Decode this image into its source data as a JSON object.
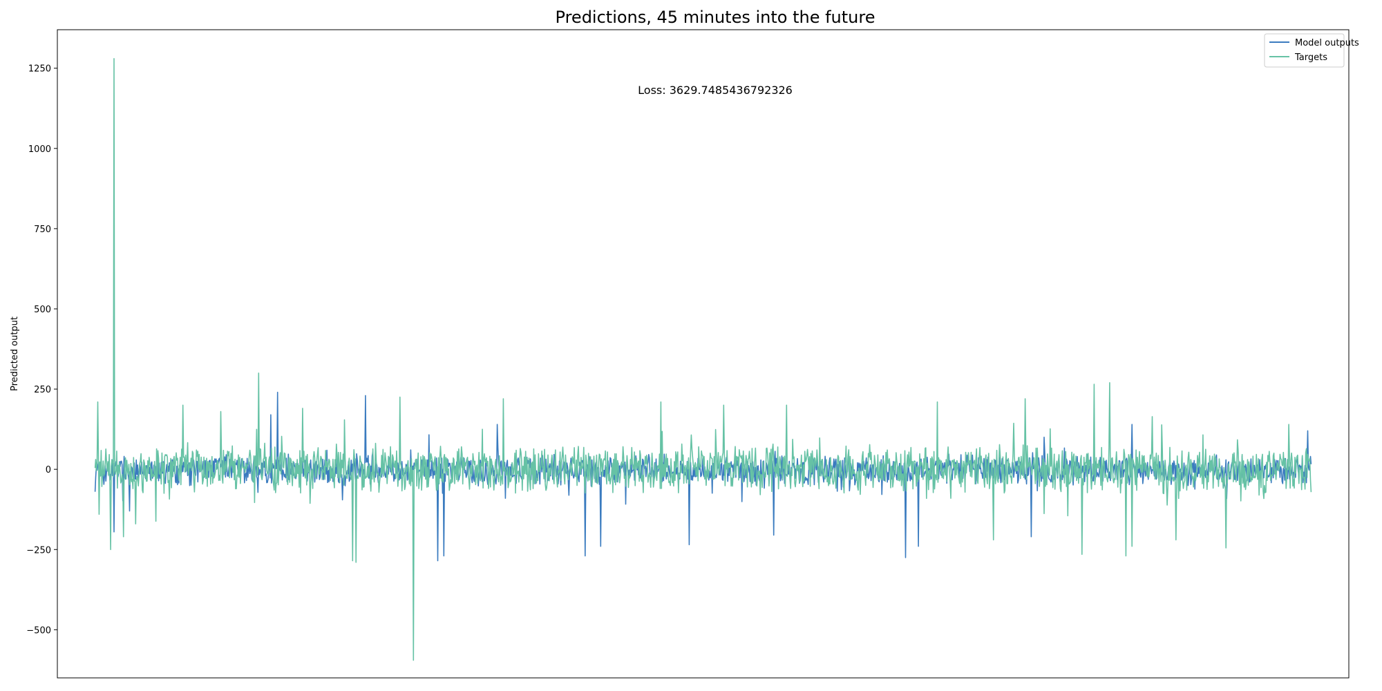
{
  "chart_data": {
    "type": "line",
    "title": "Predictions, 45 minutes into the future",
    "xlabel": "",
    "ylabel": "Predicted output",
    "ylim": [
      -650,
      1370
    ],
    "yticks": [
      -500,
      -250,
      0,
      250,
      500,
      750,
      1000,
      1250
    ],
    "ytick_labels": [
      "−500",
      "−250",
      "0",
      "250",
      "500",
      "750",
      "1000",
      "1250"
    ],
    "x_ticks_shown": false,
    "grid": false,
    "legend_position": "top-right",
    "annotation": "Loss: 3629.7485436792326",
    "x_range": [
      -60,
      1995
    ],
    "series": [
      {
        "name": "Model outputs",
        "color": "#3a7bbf",
        "band_low": -40,
        "band_high": 35,
        "spikes": [
          {
            "x": 0,
            "y": -70
          },
          {
            "x": 30,
            "y": -195
          },
          {
            "x": 55,
            "y": -130
          },
          {
            "x": 290,
            "y": 240
          },
          {
            "x": 280,
            "y": 170
          },
          {
            "x": 430,
            "y": 230
          },
          {
            "x": 545,
            "y": -285
          },
          {
            "x": 555,
            "y": -270
          },
          {
            "x": 640,
            "y": 140
          },
          {
            "x": 780,
            "y": -270
          },
          {
            "x": 805,
            "y": -240
          },
          {
            "x": 945,
            "y": -235
          },
          {
            "x": 1080,
            "y": -205
          },
          {
            "x": 1290,
            "y": -275
          },
          {
            "x": 1310,
            "y": -240
          },
          {
            "x": 1490,
            "y": -210
          },
          {
            "x": 1510,
            "y": 100
          },
          {
            "x": 1650,
            "y": 140
          },
          {
            "x": 1930,
            "y": 120
          },
          {
            "x": 1960,
            "y": -155
          }
        ]
      },
      {
        "name": "Targets",
        "color": "#66c2a5",
        "band_low": -60,
        "band_high": 60,
        "spikes": [
          {
            "x": 4,
            "y": 210
          },
          {
            "x": 6,
            "y": -140
          },
          {
            "x": 25,
            "y": -250
          },
          {
            "x": 30,
            "y": 1280
          },
          {
            "x": 45,
            "y": -210
          },
          {
            "x": 140,
            "y": 200
          },
          {
            "x": 200,
            "y": 180
          },
          {
            "x": 260,
            "y": 300
          },
          {
            "x": 330,
            "y": 190
          },
          {
            "x": 410,
            "y": -285
          },
          {
            "x": 415,
            "y": -290
          },
          {
            "x": 485,
            "y": 225
          },
          {
            "x": 507,
            "y": -595
          },
          {
            "x": 650,
            "y": 220
          },
          {
            "x": 900,
            "y": 210
          },
          {
            "x": 1000,
            "y": 200
          },
          {
            "x": 1100,
            "y": 200
          },
          {
            "x": 1340,
            "y": 210
          },
          {
            "x": 1430,
            "y": -220
          },
          {
            "x": 1480,
            "y": 220
          },
          {
            "x": 1570,
            "y": -265
          },
          {
            "x": 1590,
            "y": 265
          },
          {
            "x": 1615,
            "y": 270
          },
          {
            "x": 1640,
            "y": -270
          },
          {
            "x": 1650,
            "y": -240
          },
          {
            "x": 1720,
            "y": -220
          },
          {
            "x": 1800,
            "y": -245
          },
          {
            "x": 1900,
            "y": 140
          }
        ]
      }
    ]
  }
}
